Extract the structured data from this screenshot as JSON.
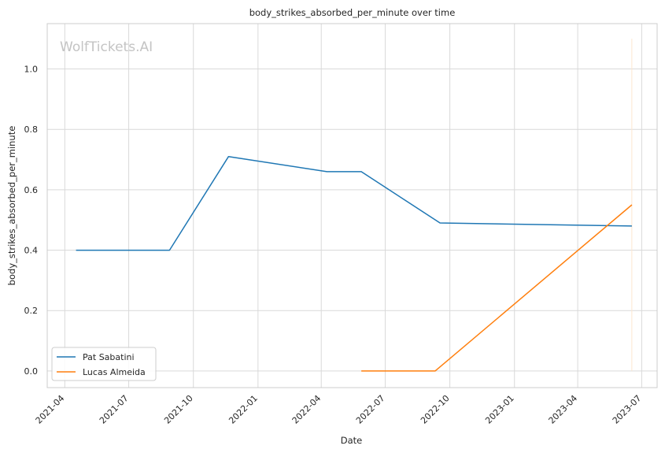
{
  "chart_data": {
    "type": "line",
    "title": "body_strikes_absorbed_per_minute over time",
    "xlabel": "Date",
    "ylabel": "body_strikes_absorbed_per_minute",
    "watermark": "WolfTickets.AI",
    "x_ticks": [
      "2021-04",
      "2021-07",
      "2021-10",
      "2022-01",
      "2022-04",
      "2022-07",
      "2022-10",
      "2023-01",
      "2023-04",
      "2023-07"
    ],
    "y_ticks": [
      "0.0",
      "0.2",
      "0.4",
      "0.6",
      "0.8",
      "1.0"
    ],
    "xlim": [
      "2021-03-07",
      "2023-07-23"
    ],
    "ylim": [
      -0.055,
      1.15
    ],
    "grid": true,
    "legend_position": "lower-left",
    "series": [
      {
        "name": "Pat Sabatini",
        "color": "#1f77b4",
        "x": [
          "2021-04-17",
          "2021-08-28",
          "2021-11-20",
          "2022-04-09",
          "2022-05-28",
          "2022-09-17",
          "2023-06-17"
        ],
        "y": [
          0.4,
          0.4,
          0.71,
          0.66,
          0.66,
          0.49,
          0.48
        ]
      },
      {
        "name": "Lucas Almeida",
        "color": "#ff7f0e",
        "x": [
          "2022-05-28",
          "2022-09-10",
          "2023-06-17"
        ],
        "y": [
          0.0,
          0.0,
          0.55
        ]
      }
    ]
  }
}
